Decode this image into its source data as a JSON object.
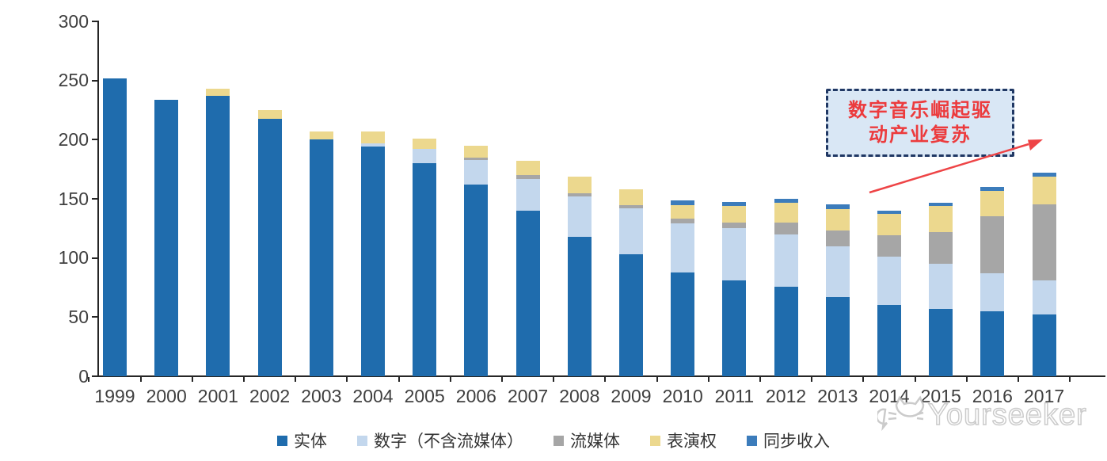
{
  "chart_data": {
    "type": "bar",
    "subtype": "stacked",
    "title": "",
    "xlabel": "",
    "ylabel": "",
    "x": [
      "1999",
      "2000",
      "2001",
      "2002",
      "2003",
      "2004",
      "2005",
      "2006",
      "2007",
      "2008",
      "2009",
      "2010",
      "2011",
      "2012",
      "2013",
      "2014",
      "2015",
      "2016",
      "2017"
    ],
    "series": [
      {
        "name": "实体",
        "color": "#1f6cad",
        "values": [
          252,
          234,
          237,
          218,
          200,
          194,
          180,
          162,
          140,
          118,
          103,
          88,
          81,
          76,
          67,
          60,
          57,
          55,
          52
        ]
      },
      {
        "name": "数字（不含流媒体）",
        "color": "#c3d7ed",
        "values": [
          0,
          0,
          0,
          0,
          0,
          3,
          12,
          21,
          27,
          34,
          39,
          41,
          44,
          44,
          43,
          41,
          38,
          32,
          29
        ]
      },
      {
        "name": "流媒体",
        "color": "#a6a6a6",
        "values": [
          0,
          0,
          0,
          0,
          0,
          0,
          0,
          2,
          3,
          3,
          3,
          4,
          5,
          10,
          13,
          18,
          27,
          48,
          64
        ]
      },
      {
        "name": "表演权",
        "color": "#ecd88e",
        "values": [
          0,
          0,
          6,
          7,
          7,
          10,
          9,
          10,
          12,
          14,
          13,
          12,
          14,
          17,
          18,
          18,
          22,
          22,
          24
        ]
      },
      {
        "name": "同步收入",
        "color": "#3c7cbb",
        "values": [
          0,
          0,
          0,
          0,
          0,
          0,
          0,
          0,
          0,
          0,
          0,
          4,
          3,
          3,
          4,
          3,
          3,
          3,
          3
        ]
      }
    ],
    "totals": [
      252,
      234,
      243,
      225,
      207,
      207,
      201,
      195,
      182,
      169,
      158,
      149,
      147,
      150,
      145,
      140,
      147,
      160,
      172
    ],
    "ylim": [
      0,
      300
    ],
    "yticks": [
      0,
      50,
      100,
      150,
      200,
      250,
      300
    ],
    "grid": false,
    "legend_position": "bottom"
  },
  "annotation": {
    "line1": "数字音乐崛起驱",
    "line2": "动产业复苏",
    "text_color": "#ec3b3d",
    "box_fill": "#d9e7f5",
    "border_color": "#203864",
    "arrow_color": "#ee4446"
  },
  "watermark": {
    "text": "Yourseeker"
  },
  "colors": {
    "axis": "#262626",
    "tick_label": "#3f3f3f",
    "background": "#ffffff"
  }
}
